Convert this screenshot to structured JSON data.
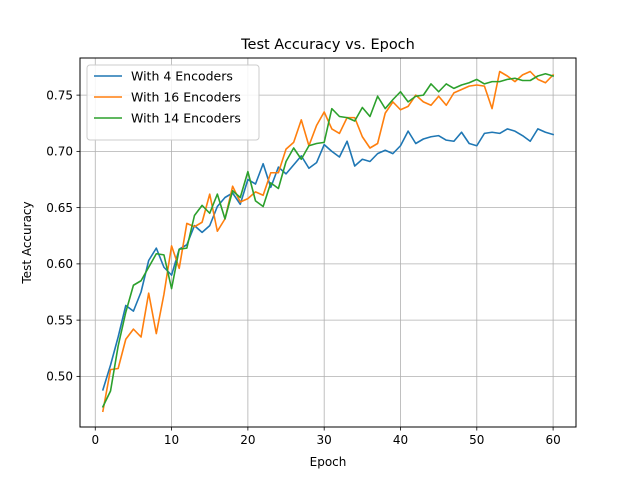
{
  "chart_data": {
    "type": "line",
    "title": "Test Accuracy vs. Epoch",
    "xlabel": "Epoch",
    "ylabel": "Test Accuracy",
    "xlim": [
      -2,
      63
    ],
    "ylim": [
      0.455,
      0.783
    ],
    "xticks": [
      0,
      10,
      20,
      30,
      40,
      50,
      60
    ],
    "yticks": [
      0.5,
      0.55,
      0.6,
      0.65,
      0.7,
      0.75
    ],
    "xtick_labels": [
      "0",
      "10",
      "20",
      "30",
      "40",
      "50",
      "60"
    ],
    "ytick_labels": [
      "0.50",
      "0.55",
      "0.60",
      "0.65",
      "0.70",
      "0.75"
    ],
    "grid": true,
    "legend_position": "top-left",
    "x": [
      1,
      2,
      3,
      4,
      5,
      6,
      7,
      8,
      9,
      10,
      11,
      12,
      13,
      14,
      15,
      16,
      17,
      18,
      19,
      20,
      21,
      22,
      23,
      24,
      25,
      26,
      27,
      28,
      29,
      30,
      31,
      32,
      33,
      34,
      35,
      36,
      37,
      38,
      39,
      40,
      41,
      42,
      43,
      44,
      45,
      46,
      47,
      48,
      49,
      50,
      51,
      52,
      53,
      54,
      55,
      56,
      57,
      58,
      59,
      60
    ],
    "series": [
      {
        "name": "With 4 Encoders",
        "color": "#1f77b4",
        "values": [
          0.488,
          0.51,
          0.535,
          0.563,
          0.558,
          0.575,
          0.603,
          0.614,
          0.597,
          0.59,
          0.613,
          0.617,
          0.634,
          0.628,
          0.634,
          0.651,
          0.659,
          0.663,
          0.653,
          0.675,
          0.671,
          0.689,
          0.668,
          0.686,
          0.68,
          0.688,
          0.696,
          0.685,
          0.69,
          0.706,
          0.7,
          0.695,
          0.709,
          0.687,
          0.693,
          0.691,
          0.698,
          0.701,
          0.698,
          0.705,
          0.718,
          0.707,
          0.711,
          0.713,
          0.714,
          0.71,
          0.709,
          0.717,
          0.707,
          0.705,
          0.716,
          0.717,
          0.716,
          0.72,
          0.718,
          0.714,
          0.709,
          0.72,
          0.717,
          0.715
        ]
      },
      {
        "name": "With 16 Encoders",
        "color": "#ff7f0e",
        "values": [
          0.469,
          0.506,
          0.507,
          0.533,
          0.542,
          0.535,
          0.574,
          0.538,
          0.573,
          0.616,
          0.596,
          0.636,
          0.633,
          0.637,
          0.662,
          0.629,
          0.64,
          0.669,
          0.655,
          0.658,
          0.664,
          0.661,
          0.681,
          0.681,
          0.702,
          0.708,
          0.728,
          0.705,
          0.723,
          0.735,
          0.72,
          0.716,
          0.73,
          0.73,
          0.713,
          0.703,
          0.707,
          0.734,
          0.744,
          0.737,
          0.74,
          0.75,
          0.744,
          0.741,
          0.749,
          0.741,
          0.752,
          0.755,
          0.758,
          0.759,
          0.758,
          0.738,
          0.771,
          0.767,
          0.762,
          0.768,
          0.771,
          0.764,
          0.761,
          0.768
        ]
      },
      {
        "name": "With 14 Encoders",
        "color": "#2ca02c",
        "values": [
          0.473,
          0.487,
          0.527,
          0.557,
          0.581,
          0.585,
          0.597,
          0.609,
          0.608,
          0.578,
          0.613,
          0.614,
          0.643,
          0.652,
          0.645,
          0.662,
          0.64,
          0.665,
          0.659,
          0.682,
          0.656,
          0.651,
          0.672,
          0.667,
          0.691,
          0.703,
          0.693,
          0.705,
          0.707,
          0.708,
          0.738,
          0.731,
          0.73,
          0.727,
          0.739,
          0.731,
          0.749,
          0.738,
          0.746,
          0.753,
          0.744,
          0.749,
          0.75,
          0.76,
          0.753,
          0.76,
          0.756,
          0.759,
          0.761,
          0.764,
          0.76,
          0.762,
          0.762,
          0.764,
          0.765,
          0.763,
          0.763,
          0.767,
          0.769,
          0.767
        ]
      }
    ]
  }
}
